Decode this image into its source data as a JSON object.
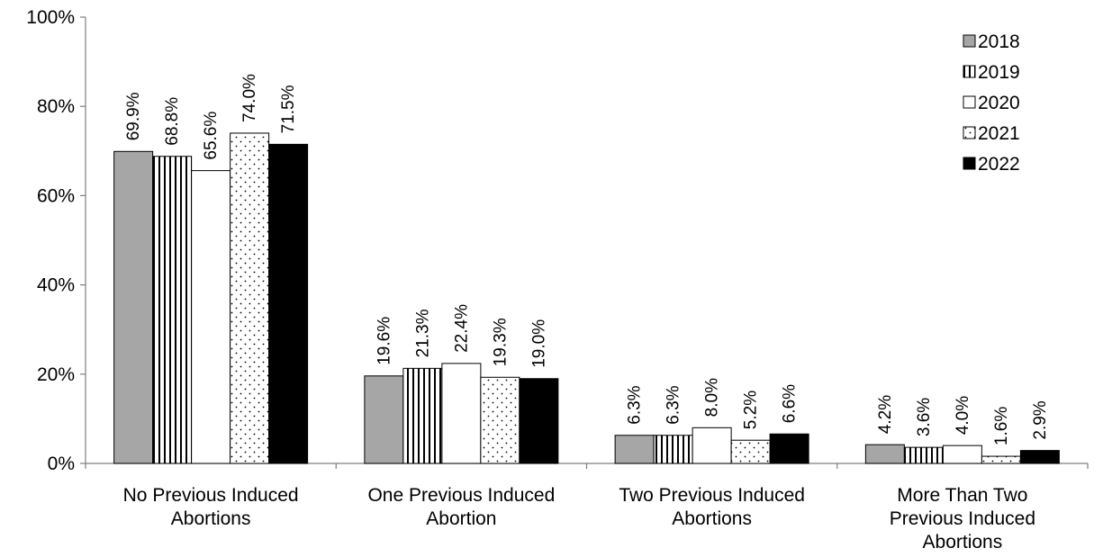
{
  "chart_data": {
    "type": "bar",
    "title": "",
    "xlabel": "",
    "ylabel": "",
    "ylim": [
      0,
      100
    ],
    "yticks": [
      "0%",
      "20%",
      "40%",
      "60%",
      "80%",
      "100%"
    ],
    "ytick_values": [
      0,
      20,
      40,
      60,
      80,
      100
    ],
    "categories": [
      [
        "No Previous Induced",
        "Abortions"
      ],
      [
        "One Previous Induced",
        "Abortion"
      ],
      [
        "Two Previous Induced",
        "Abortions"
      ],
      [
        "More Than Two",
        "Previous Induced",
        "Abortions"
      ]
    ],
    "legend_position": "top-right",
    "grid": false,
    "series": [
      {
        "name": "2018",
        "pattern": "solid-gray",
        "color": "#a6a6a6",
        "values": [
          69.9,
          19.6,
          6.3,
          4.2
        ],
        "labels": [
          "69.9%",
          "19.6%",
          "6.3%",
          "4.2%"
        ]
      },
      {
        "name": "2019",
        "pattern": "vertical-stripes",
        "color": "#000000",
        "values": [
          68.8,
          21.3,
          6.3,
          3.6
        ],
        "labels": [
          "68.8%",
          "21.3%",
          "6.3%",
          "3.6%"
        ]
      },
      {
        "name": "2020",
        "pattern": "white",
        "color": "#ffffff",
        "values": [
          65.6,
          22.4,
          8.0,
          4.0
        ],
        "labels": [
          "65.6%",
          "22.4%",
          "8.0%",
          "4.0%"
        ]
      },
      {
        "name": "2021",
        "pattern": "dots",
        "color": "#000000",
        "values": [
          74.0,
          19.3,
          5.2,
          1.6
        ],
        "labels": [
          "74.0%",
          "19.3%",
          "5.2%",
          "1.6%"
        ]
      },
      {
        "name": "2022",
        "pattern": "solid-black",
        "color": "#000000",
        "values": [
          71.5,
          19.0,
          6.6,
          2.9
        ],
        "labels": [
          "71.5%",
          "19.0%",
          "6.6%",
          "2.9%"
        ]
      }
    ]
  }
}
